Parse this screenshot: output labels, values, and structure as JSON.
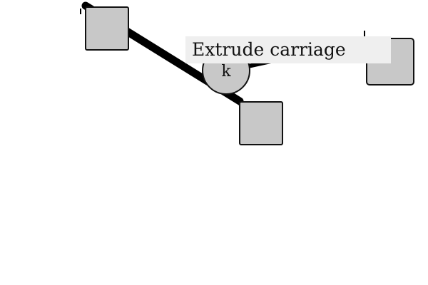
{
  "colors": {
    "background": "#ffffff",
    "node_fill": "#c8c8c8",
    "node_stroke": "#111111",
    "edge": "#000000",
    "tooltip_bg": "#efefef"
  },
  "diagram": {
    "nodes": [
      {
        "id": "top-left",
        "shape": "square",
        "label": ""
      },
      {
        "id": "center",
        "shape": "circle",
        "label": "k"
      },
      {
        "id": "bottom-center",
        "shape": "square",
        "label": ""
      },
      {
        "id": "top-right",
        "shape": "square",
        "label": ""
      }
    ],
    "edges": [
      {
        "from": "top-left",
        "to": "center"
      },
      {
        "from": "center",
        "to": "bottom-center"
      },
      {
        "from": "center",
        "to": "top-right"
      }
    ]
  },
  "tooltip": {
    "text": "Extrude carriage"
  }
}
